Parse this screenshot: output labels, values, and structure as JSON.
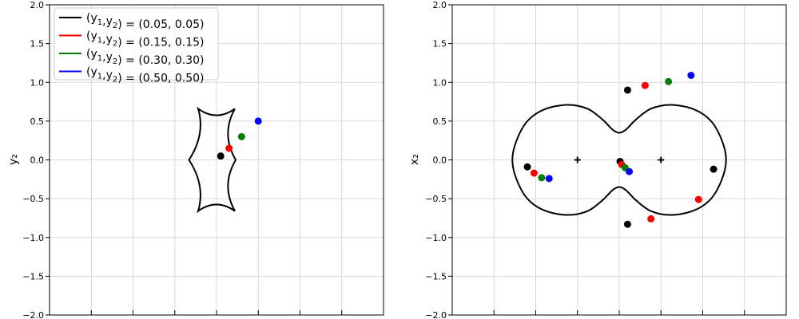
{
  "chart_data": [
    {
      "type": "scatter",
      "panel": "left",
      "title": "",
      "xlabel": "",
      "ylabel": "y₂",
      "xlim": [
        -2.0,
        2.0
      ],
      "ylim": [
        -2.0,
        2.0
      ],
      "grid": true,
      "yticks": [
        "2.0",
        "1.5",
        "1.0",
        "0.5",
        "0.0",
        "−0.5",
        "−1.0",
        "−1.5",
        "−2.0"
      ],
      "ytick_values": [
        2.0,
        1.5,
        1.0,
        0.5,
        0.0,
        -0.5,
        -1.0,
        -1.5,
        -2.0
      ],
      "xtick_values": [
        -1.5,
        -1.0,
        -0.5,
        0.0,
        0.5,
        1.0,
        1.5
      ],
      "legend_placement": "top-left",
      "legend": [
        {
          "prefix": "(y",
          "s1": "1",
          "mid": ",y",
          "s2": "2",
          "suffix": ") = (0.05, 0.05)",
          "color": "#000000"
        },
        {
          "prefix": "(y",
          "s1": "1",
          "mid": ",y",
          "s2": "2",
          "suffix": ") = (0.15, 0.15)",
          "color": "#ff0000"
        },
        {
          "prefix": "(y",
          "s1": "1",
          "mid": ",y",
          "s2": "2",
          "suffix": ") = (0.30, 0.30)",
          "color": "#008000"
        },
        {
          "prefix": "(y",
          "s1": "1",
          "mid": ",y",
          "s2": "2",
          "suffix": ") = (0.50, 0.50)",
          "color": "#0000ff"
        }
      ],
      "caustic": {
        "cusps": [
          [
            -0.33,
            0.0
          ],
          [
            0.23,
            0.0
          ],
          [
            -0.22,
            0.66
          ],
          [
            0.22,
            0.66
          ],
          [
            -0.22,
            -0.66
          ],
          [
            0.22,
            -0.66
          ]
        ],
        "color": "#000000"
      },
      "points": [
        {
          "x": 0.05,
          "y": 0.05,
          "color": "#000000"
        },
        {
          "x": 0.15,
          "y": 0.15,
          "color": "#ff0000"
        },
        {
          "x": 0.3,
          "y": 0.3,
          "color": "#008000"
        },
        {
          "x": 0.5,
          "y": 0.5,
          "color": "#0000ff"
        }
      ]
    },
    {
      "type": "scatter",
      "panel": "right",
      "title": "",
      "xlabel": "",
      "ylabel": "x₂",
      "xlim": [
        -2.0,
        2.0
      ],
      "ylim": [
        -2.0,
        2.0
      ],
      "grid": true,
      "yticks": [
        "2.0",
        "1.5",
        "1.0",
        "0.5",
        "0.0",
        "−0.5",
        "−1.0",
        "−1.5",
        "−2.0"
      ],
      "ytick_values": [
        2.0,
        1.5,
        1.0,
        0.5,
        0.0,
        -0.5,
        -1.0,
        -1.5,
        -2.0
      ],
      "xtick_values": [
        -1.5,
        -1.0,
        -0.5,
        0.0,
        0.5,
        1.0,
        1.5
      ],
      "critical_curve": {
        "lens_positions": [
          [
            -0.5,
            0.0
          ],
          [
            0.5,
            0.0
          ]
        ],
        "color": "#000000"
      },
      "lens_markers": [
        [
          -0.5,
          0.0
        ],
        [
          0.5,
          0.0
        ]
      ],
      "points": [
        {
          "x": 0.1,
          "y": 0.9,
          "color": "#000000"
        },
        {
          "x": -1.1,
          "y": -0.09,
          "color": "#000000"
        },
        {
          "x": 0.01,
          "y": -0.02,
          "color": "#000000"
        },
        {
          "x": 1.13,
          "y": -0.12,
          "color": "#000000"
        },
        {
          "x": 0.1,
          "y": -0.83,
          "color": "#000000"
        },
        {
          "x": 0.31,
          "y": 0.96,
          "color": "#ff0000"
        },
        {
          "x": -1.02,
          "y": -0.17,
          "color": "#ff0000"
        },
        {
          "x": 0.03,
          "y": -0.06,
          "color": "#ff0000"
        },
        {
          "x": 0.95,
          "y": -0.51,
          "color": "#ff0000"
        },
        {
          "x": 0.38,
          "y": -0.76,
          "color": "#ff0000"
        },
        {
          "x": 0.59,
          "y": 1.01,
          "color": "#008000"
        },
        {
          "x": -0.93,
          "y": -0.23,
          "color": "#008000"
        },
        {
          "x": 0.07,
          "y": -0.1,
          "color": "#008000"
        },
        {
          "x": 0.86,
          "y": 1.09,
          "color": "#0000ff"
        },
        {
          "x": -0.84,
          "y": -0.24,
          "color": "#0000ff"
        },
        {
          "x": 0.12,
          "y": -0.15,
          "color": "#0000ff"
        }
      ]
    }
  ]
}
